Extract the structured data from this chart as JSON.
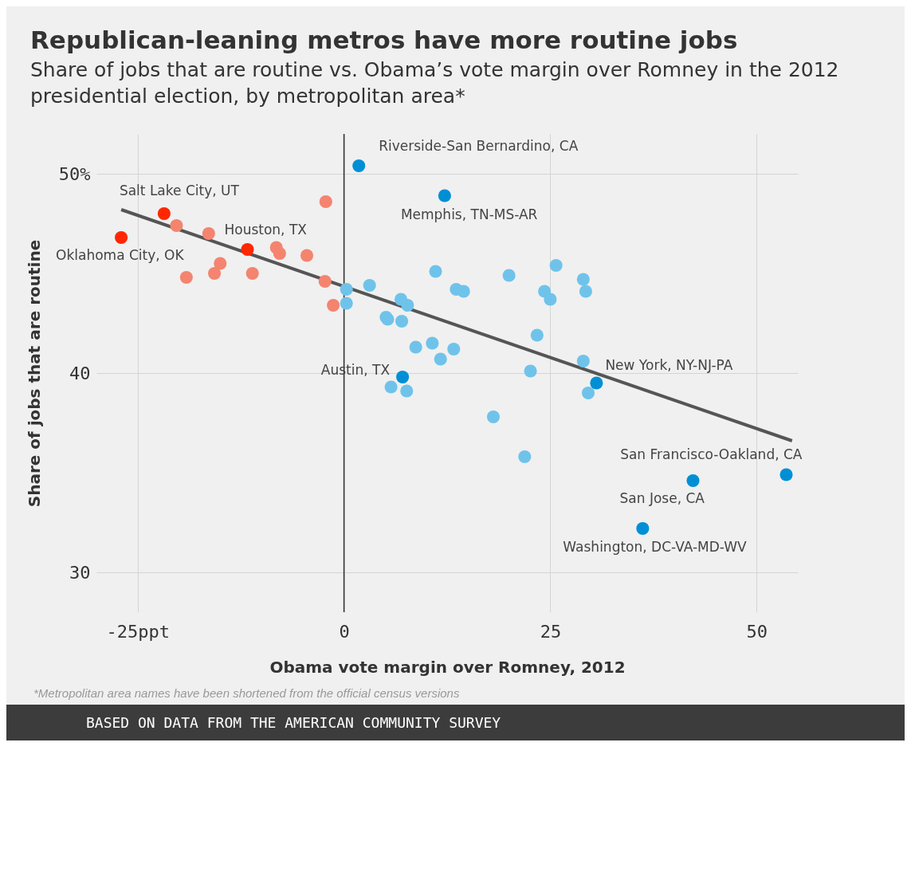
{
  "chart_data": {
    "type": "scatter",
    "title": "Republican-leaning metros have more routine jobs",
    "subtitle": "Share of jobs that are routine vs. Obama’s vote margin over Romney in the 2012 presidential election, by metropolitan area*",
    "xlabel": "Obama vote margin over Romney, 2012",
    "ylabel": "Share of jobs that are routine",
    "xlim": [
      -30,
      55
    ],
    "ylim": [
      28,
      52
    ],
    "xticks": [
      {
        "value": -25,
        "label": "-25ppt"
      },
      0,
      25,
      50
    ],
    "yticks": [
      30,
      40,
      {
        "value": 50,
        "label": "50%"
      }
    ],
    "grid": true,
    "marker": "circle",
    "ref_lines": [
      {
        "axis": "x",
        "value": 0,
        "color": "#333333"
      }
    ],
    "series": [
      {
        "type": "line",
        "marker": "none",
        "color": "#555555",
        "x": [
          -27,
          54.3
        ],
        "values": [
          48.2,
          36.6
        ]
      },
      {
        "color": "#f4846f",
        "x": [
          -20.3,
          -19.1,
          -16.4,
          -15.7,
          -15.0,
          -11.1,
          -8.2,
          -7.8,
          -4.5,
          -2.2,
          -2.3,
          -1.3
        ],
        "values": [
          47.4,
          44.8,
          47.0,
          45.0,
          45.5,
          45.0,
          46.3,
          46.0,
          45.9,
          48.6,
          44.6,
          43.4
        ]
      },
      {
        "color": "#ff2700",
        "x": [
          -27.0,
          -21.8,
          -11.7
        ],
        "values": [
          46.8,
          48.0,
          46.2
        ]
      },
      {
        "color": "#6fc3ea",
        "x": [
          11.1,
          20.0,
          25.7,
          29.0,
          29.3,
          24.3,
          25.0,
          13.6,
          14.5,
          3.1,
          0.3,
          0.3,
          6.9,
          7.7,
          5.1,
          5.3,
          7.0,
          8.7,
          10.7,
          11.7,
          13.3,
          23.4,
          29.0,
          22.6,
          5.7,
          7.6,
          29.6,
          18.1,
          21.9
        ],
        "values": [
          45.1,
          44.9,
          45.4,
          44.7,
          44.1,
          44.1,
          43.7,
          44.2,
          44.1,
          44.4,
          44.2,
          43.5,
          43.7,
          43.4,
          42.8,
          42.7,
          42.6,
          41.3,
          41.5,
          40.7,
          41.2,
          41.9,
          40.6,
          40.1,
          39.3,
          39.1,
          39.0,
          37.8,
          35.8
        ]
      },
      {
        "color": "#008fd5",
        "x": [
          1.8,
          12.2,
          7.1,
          30.6,
          42.3,
          53.6,
          36.2
        ],
        "values": [
          50.4,
          48.9,
          39.8,
          39.5,
          34.6,
          34.9,
          32.2
        ]
      }
    ],
    "annotations": [
      {
        "text": "Riverside-San Bernardino, CA",
        "x": 1.8,
        "y": 50.4
      },
      {
        "text": "Salt Lake City, UT",
        "x": -21.8,
        "y": 48.0
      },
      {
        "text": "Memphis, TN-MS-AR",
        "x": 12.2,
        "y": 48.9
      },
      {
        "text": "Houston, TX",
        "x": -11.7,
        "y": 46.2
      },
      {
        "text": "Oklahoma City, OK",
        "x": -27.0,
        "y": 46.8
      },
      {
        "text": "Austin, TX",
        "x": 7.1,
        "y": 39.8
      },
      {
        "text": "New York, NY-NJ-PA",
        "x": 30.6,
        "y": 39.5
      },
      {
        "text": "San Francisco-Oakland, CA",
        "x": 53.6,
        "y": 34.9
      },
      {
        "text": "San Jose, CA",
        "x": 42.3,
        "y": 34.6
      },
      {
        "text": "Washington, DC-VA-MD-WV",
        "x": 36.2,
        "y": 32.2
      },
      "*Metropolitan area names have been shortened from the official census versions",
      "BASED ON DATA FROM THE AMERICAN COMMUNITY SURVEY"
    ]
  }
}
